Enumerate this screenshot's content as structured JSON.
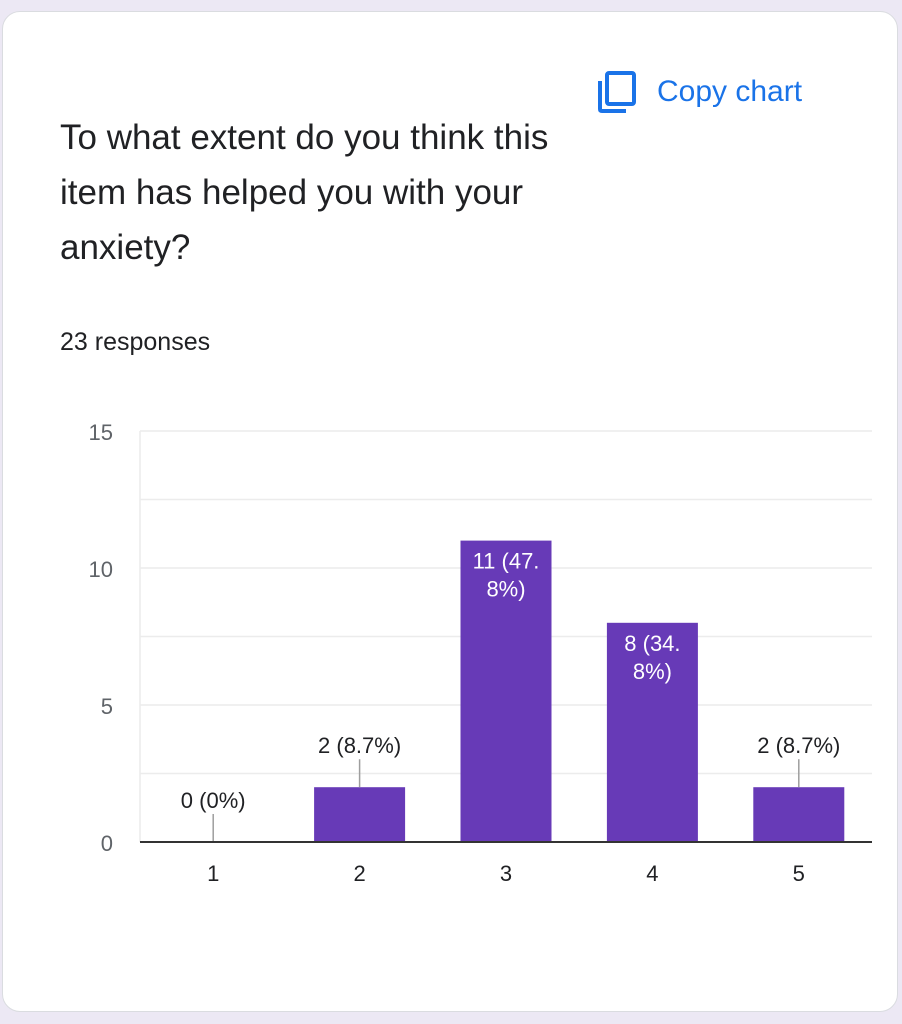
{
  "card": {
    "question": "To what extent do you think this item has helped you with your anxiety?",
    "copy_label": "Copy chart",
    "copy_icon": "copy-icon",
    "responses": "23 responses"
  },
  "colors": {
    "bar": "#673ab7",
    "accent": "#1a73e8"
  },
  "chart_data": {
    "type": "bar",
    "categories": [
      "1",
      "2",
      "3",
      "4",
      "5"
    ],
    "values": [
      0,
      2,
      11,
      8,
      2
    ],
    "labels": [
      "0 (0%)",
      "2 (8.7%)",
      "11 (47.8%)",
      "8 (34.8%)",
      "2 (8.7%)"
    ],
    "label_lines": [
      [
        "0 (0%)"
      ],
      [
        "2 (8.7%)"
      ],
      [
        "11 (47.",
        "8%)"
      ],
      [
        "8 (34.",
        "8%)"
      ],
      [
        "2 (8.7%)"
      ]
    ],
    "yticks": [
      "0",
      "5",
      "10",
      "15"
    ],
    "ylim": [
      0,
      15
    ],
    "grid": true,
    "title": "",
    "xlabel": "",
    "ylabel": ""
  }
}
